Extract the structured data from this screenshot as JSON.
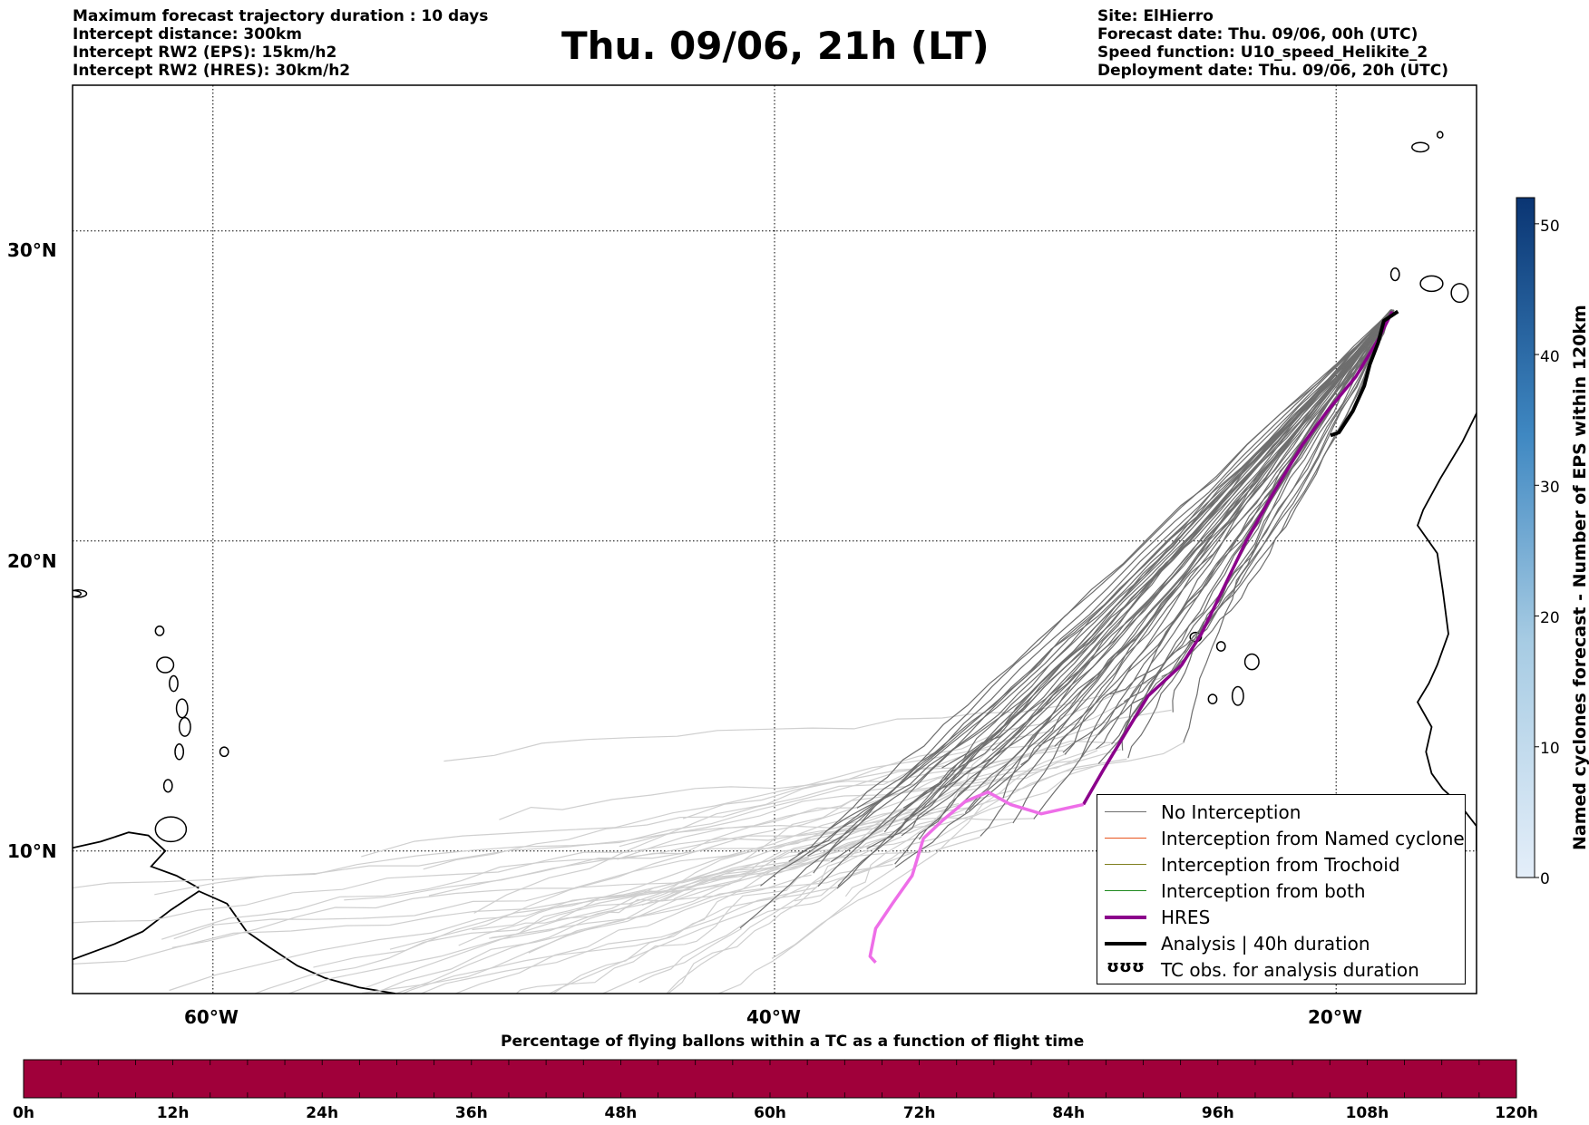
{
  "header_left": [
    "Maximum forecast trajectory duration : 10 days",
    "Intercept distance: 300km",
    "Intercept RW2 (EPS):  15km/h2",
    "Intercept RW2 (HRES): 30km/h2"
  ],
  "title": "Thu. 09/06, 21h (LT)",
  "header_right": [
    "Site: ElHierro",
    "Forecast date: Thu. 09/06, 00h (UTC)",
    "Speed function: U10_speed_Helikite_2",
    "Deployment date: Thu. 09/06, 20h (UTC)"
  ],
  "map": {
    "lon_range": [
      -65,
      -15
    ],
    "lat_range": [
      5.4,
      34.7
    ],
    "lat_labels": [
      {
        "value": 30,
        "label": "30°N"
      },
      {
        "value": 20,
        "label": "20°N"
      },
      {
        "value": 10,
        "label": "10°N"
      }
    ],
    "lon_labels": [
      {
        "value": -60,
        "label": "60°W"
      },
      {
        "value": -40,
        "label": "40°W"
      },
      {
        "value": -20,
        "label": "20°W"
      }
    ],
    "colors": {
      "no_interception_eps": "#6e6e6e",
      "no_interception_late": "#cfcfcf",
      "hres": "#8b008b",
      "hres_late": "#ee6ee8",
      "analysis": "#000000"
    }
  },
  "legend": {
    "items": [
      {
        "label": "No Interception",
        "color": "#6e6e6e",
        "width": 1.5,
        "marker": false
      },
      {
        "label": "Interception from Named cyclone",
        "color": "#e8541c",
        "width": 1.5,
        "marker": false
      },
      {
        "label": "Interception from Trochoid",
        "color": "#808020",
        "width": 1.5,
        "marker": false
      },
      {
        "label": "Interception from both",
        "color": "#1f8a1f",
        "width": 1.5,
        "marker": false
      },
      {
        "label": "HRES",
        "color": "#8b008b",
        "width": 4,
        "marker": false
      },
      {
        "label": "Analysis | 40h duration",
        "color": "#000000",
        "width": 4,
        "marker": false
      },
      {
        "label": "TC obs. for analysis duration",
        "color": "#000000",
        "width": 0,
        "marker": true,
        "marker_symbol": "ʊʊʊ"
      }
    ]
  },
  "colorbar": {
    "title": "Named cyclones forecast - Number of EPS within 120km",
    "range": [
      0,
      52
    ],
    "ticks": [
      "0",
      "10",
      "20",
      "30",
      "40",
      "50"
    ],
    "color_low": "#e4eef9",
    "color_high": "#0a3573"
  },
  "percentage_bar": {
    "title": "Percentage of flying ballons within a TC as a function of flight time",
    "ticks": [
      "0h",
      "12h",
      "24h",
      "36h",
      "48h",
      "60h",
      "72h",
      "84h",
      "96h",
      "108h",
      "120h"
    ],
    "fill_color": "#a0003a",
    "percent_all": 0
  }
}
